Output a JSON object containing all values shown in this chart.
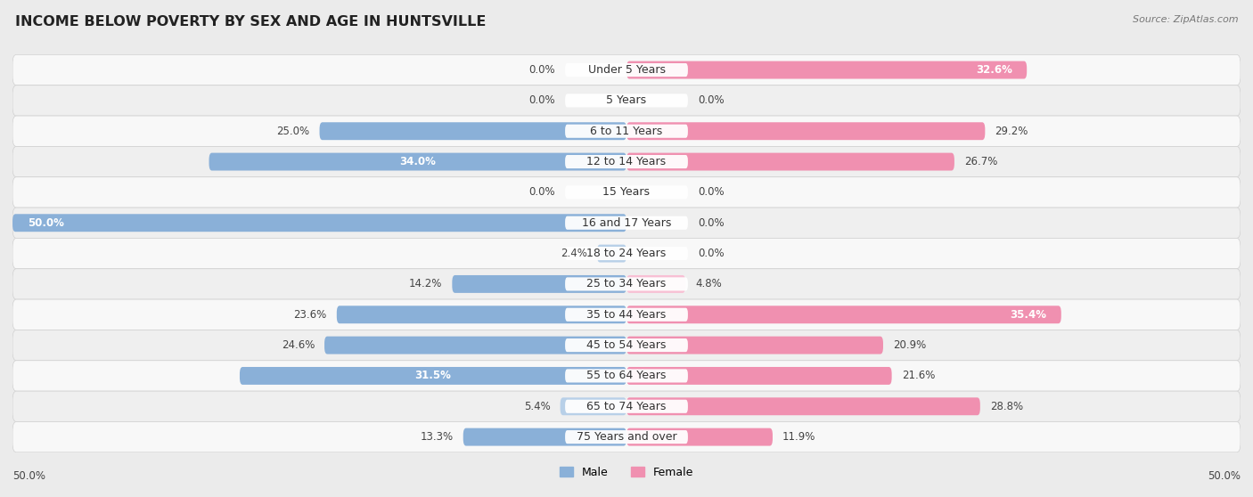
{
  "title": "INCOME BELOW POVERTY BY SEX AND AGE IN HUNTSVILLE",
  "source": "Source: ZipAtlas.com",
  "categories": [
    "Under 5 Years",
    "5 Years",
    "6 to 11 Years",
    "12 to 14 Years",
    "15 Years",
    "16 and 17 Years",
    "18 to 24 Years",
    "25 to 34 Years",
    "35 to 44 Years",
    "45 to 54 Years",
    "55 to 64 Years",
    "65 to 74 Years",
    "75 Years and over"
  ],
  "male": [
    0.0,
    0.0,
    25.0,
    34.0,
    0.0,
    50.0,
    2.4,
    14.2,
    23.6,
    24.6,
    31.5,
    5.4,
    13.3
  ],
  "female": [
    32.6,
    0.0,
    29.2,
    26.7,
    0.0,
    0.0,
    0.0,
    4.8,
    35.4,
    20.9,
    21.6,
    28.8,
    11.9
  ],
  "male_color": "#8ab0d8",
  "female_color": "#f090b0",
  "male_light_color": "#b8d0e8",
  "female_light_color": "#f8c0d4",
  "bg_color": "#ebebeb",
  "row_bg_even": "#f8f8f8",
  "row_bg_odd": "#efefef",
  "label_bg": "#ffffff",
  "axis_min": -50.0,
  "axis_max": 50.0,
  "title_fontsize": 11.5,
  "label_fontsize": 8.5,
  "cat_fontsize": 9,
  "source_fontsize": 8
}
